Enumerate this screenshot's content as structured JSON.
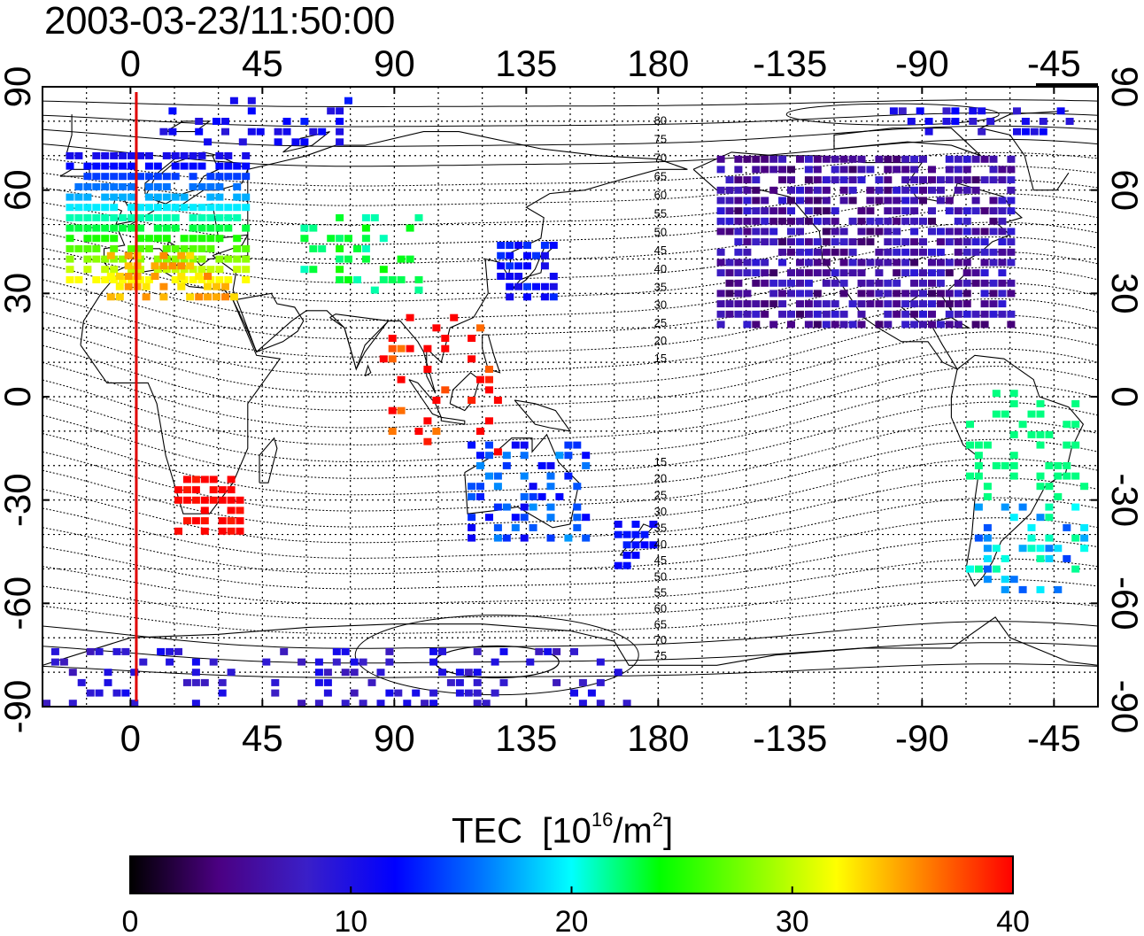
{
  "title": "2003-03-23/11:50:00",
  "map": {
    "projection": "equirectangular",
    "center_longitude": 135,
    "lon_ticks": [
      "0",
      "45",
      "90",
      "135",
      "180",
      "-135",
      "-90",
      "-45"
    ],
    "lat_ticks": [
      "90",
      "60",
      "30",
      "0",
      "-30",
      "-60",
      "-90"
    ],
    "subsolar_meridian_color": "#e00000",
    "contour_labels_north": [
      "80",
      "75",
      "70",
      "65",
      "60",
      "55",
      "50",
      "45",
      "40",
      "35",
      "30",
      "25",
      "20",
      "15"
    ],
    "contour_labels_south": [
      "15",
      "20",
      "25",
      "30",
      "35",
      "40",
      "45",
      "50",
      "55",
      "60",
      "65",
      "70",
      "75"
    ]
  },
  "colorbar": {
    "title_main": "TEC",
    "title_unit_base": "[10",
    "title_unit_exp": "16",
    "title_unit_mid": "/m",
    "title_unit_exp2": "2",
    "title_unit_end": "]",
    "min": 0,
    "max": 40,
    "tick_labels": [
      "0",
      "10",
      "20",
      "30",
      "40"
    ],
    "colormap": [
      "#000000",
      "#4b0082",
      "#3a1fc8",
      "#0000ff",
      "#0078ff",
      "#00ffff",
      "#00ff00",
      "#7fff00",
      "#ffff00",
      "#ff8000",
      "#ff0000"
    ]
  },
  "chart_data": {
    "type": "heatmap",
    "title": "2003-03-23/11:50:00",
    "xlabel": "",
    "ylabel": "",
    "x_range": [
      -30,
      330
    ],
    "y_range": [
      -90,
      90
    ],
    "value_label": "TEC [10^16/m^2]",
    "value_range": [
      0,
      40
    ],
    "regions": [
      {
        "region": "Europe",
        "tec_approx": 20
      },
      {
        "region": "Mediterranean / North Africa",
        "tec_approx": 34
      },
      {
        "region": "Southern Africa",
        "tec_approx": 40
      },
      {
        "region": "Central Asia",
        "tec_approx": 23
      },
      {
        "region": "South-East Asia",
        "tec_approx": 40
      },
      {
        "region": "Japan",
        "tec_approx": 12
      },
      {
        "region": "Australia",
        "tec_approx": 14
      },
      {
        "region": "New Zealand",
        "tec_approx": 12
      },
      {
        "region": "North America",
        "tec_approx": 6
      },
      {
        "region": "South America",
        "tec_approx": 18
      },
      {
        "region": "Antarctica",
        "tec_approx": 9
      }
    ]
  }
}
